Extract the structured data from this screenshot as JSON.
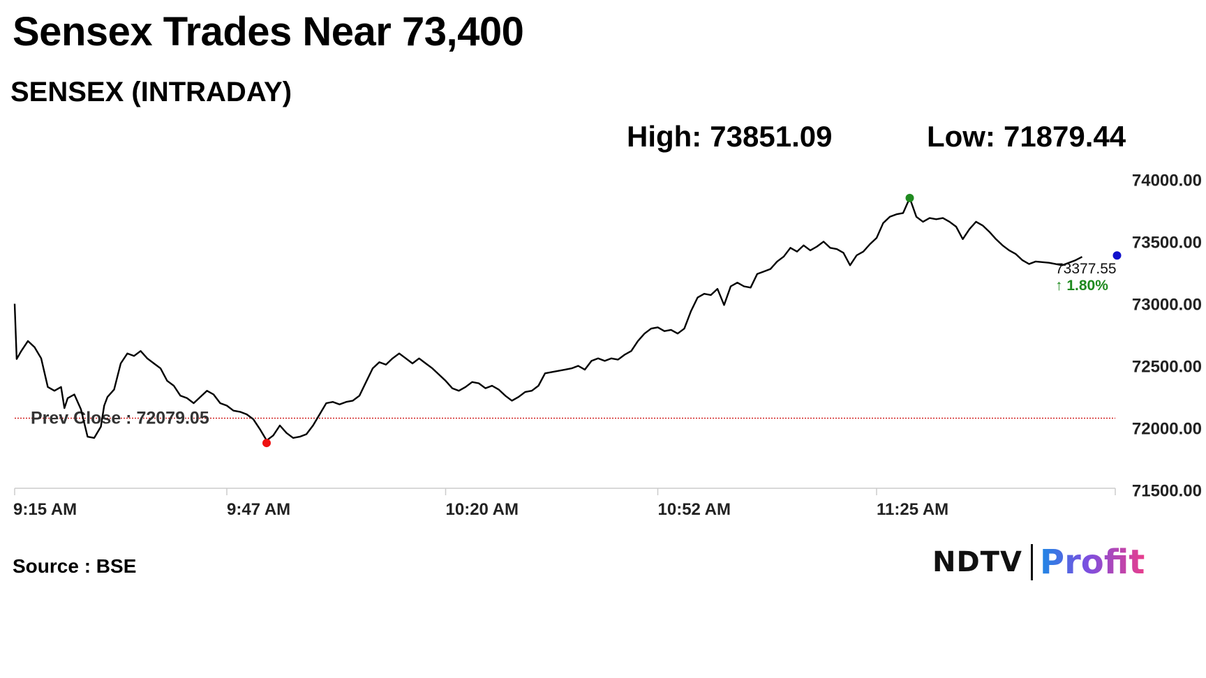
{
  "header": {
    "headline": "Sensex Trades Near 73,400",
    "subtitle": "SENSEX (INTRADAY)"
  },
  "stats": {
    "high_label": "High:",
    "high_value": "73851.09",
    "low_label": "Low:",
    "low_value": "71879.44"
  },
  "footer": {
    "source": "Source : BSE",
    "logo_left": "NDTV",
    "logo_right": "Profit"
  },
  "colors": {
    "line": "#000000",
    "prev_close_line": "#cc0000",
    "high_marker": "#1f8a1f",
    "low_marker": "#ee1111",
    "last_marker": "#1010cc",
    "change_text": "#1f8a1f"
  },
  "chart_data": {
    "type": "line",
    "title": "SENSEX (INTRADAY)",
    "xlabel": "",
    "ylabel": "",
    "x_ticks": [
      "9:15 AM",
      "9:47 AM",
      "10:20 AM",
      "10:52 AM",
      "11:25 AM"
    ],
    "x_tick_minutes": [
      0,
      32,
      65,
      97,
      130
    ],
    "xlim": [
      0,
      166
    ],
    "y_ticks": [
      "74000.00",
      "73500.00",
      "73000.00",
      "72500.00",
      "72000.00",
      "71500.00"
    ],
    "ylim": [
      71470,
      74030
    ],
    "grid": false,
    "y_axis_side": "right",
    "prev_close": {
      "label": "Prev Close : 72079.05",
      "value": 72079.05
    },
    "high": {
      "minute": 135,
      "value": 73851.09
    },
    "low": {
      "minute": 38,
      "value": 71879.44
    },
    "last": {
      "minute": 161,
      "value": 73377.55,
      "value_label": "73377.55",
      "change_label": "↑ 1.80%"
    },
    "series": [
      {
        "points": [
          [
            0,
            73000
          ],
          [
            0.3,
            72555
          ],
          [
            1,
            72620
          ],
          [
            2,
            72700
          ],
          [
            3,
            72650
          ],
          [
            4,
            72560
          ],
          [
            5,
            72330
          ],
          [
            6,
            72300
          ],
          [
            7,
            72330
          ],
          [
            7.5,
            72160
          ],
          [
            8,
            72240
          ],
          [
            9,
            72270
          ],
          [
            10,
            72150
          ],
          [
            11,
            71930
          ],
          [
            12,
            71920
          ],
          [
            13,
            72010
          ],
          [
            13.5,
            72180
          ],
          [
            14,
            72250
          ],
          [
            15,
            72310
          ],
          [
            16,
            72520
          ],
          [
            17,
            72600
          ],
          [
            18,
            72580
          ],
          [
            19,
            72620
          ],
          [
            20,
            72560
          ],
          [
            21,
            72520
          ],
          [
            22,
            72480
          ],
          [
            23,
            72380
          ],
          [
            24,
            72340
          ],
          [
            25,
            72260
          ],
          [
            26,
            72240
          ],
          [
            27,
            72200
          ],
          [
            28,
            72250
          ],
          [
            29,
            72300
          ],
          [
            30,
            72270
          ],
          [
            31,
            72200
          ],
          [
            32,
            72180
          ],
          [
            33,
            72140
          ],
          [
            34,
            72130
          ],
          [
            35,
            72110
          ],
          [
            36,
            72070
          ],
          [
            37,
            71990
          ],
          [
            38,
            71900
          ],
          [
            39,
            71940
          ],
          [
            40,
            72020
          ],
          [
            41,
            71960
          ],
          [
            42,
            71920
          ],
          [
            43,
            71930
          ],
          [
            44,
            71950
          ],
          [
            45,
            72020
          ],
          [
            46,
            72110
          ],
          [
            47,
            72200
          ],
          [
            48,
            72210
          ],
          [
            49,
            72190
          ],
          [
            50,
            72210
          ],
          [
            51,
            72220
          ],
          [
            52,
            72260
          ],
          [
            53,
            72370
          ],
          [
            54,
            72480
          ],
          [
            55,
            72530
          ],
          [
            56,
            72510
          ],
          [
            57,
            72560
          ],
          [
            58,
            72600
          ],
          [
            59,
            72560
          ],
          [
            60,
            72520
          ],
          [
            61,
            72560
          ],
          [
            62,
            72520
          ],
          [
            63,
            72480
          ],
          [
            64,
            72430
          ],
          [
            65,
            72380
          ],
          [
            66,
            72320
          ],
          [
            67,
            72300
          ],
          [
            68,
            72330
          ],
          [
            69,
            72370
          ],
          [
            70,
            72360
          ],
          [
            71,
            72320
          ],
          [
            72,
            72340
          ],
          [
            73,
            72310
          ],
          [
            74,
            72260
          ],
          [
            75,
            72220
          ],
          [
            76,
            72250
          ],
          [
            77,
            72290
          ],
          [
            78,
            72300
          ],
          [
            79,
            72340
          ],
          [
            80,
            72440
          ],
          [
            81,
            72450
          ],
          [
            82,
            72460
          ],
          [
            83,
            72470
          ],
          [
            84,
            72480
          ],
          [
            85,
            72500
          ],
          [
            86,
            72470
          ],
          [
            87,
            72540
          ],
          [
            88,
            72560
          ],
          [
            89,
            72540
          ],
          [
            90,
            72560
          ],
          [
            91,
            72550
          ],
          [
            92,
            72590
          ],
          [
            93,
            72620
          ],
          [
            94,
            72700
          ],
          [
            95,
            72760
          ],
          [
            96,
            72800
          ],
          [
            97,
            72810
          ],
          [
            98,
            72780
          ],
          [
            99,
            72790
          ],
          [
            100,
            72760
          ],
          [
            101,
            72800
          ],
          [
            102,
            72940
          ],
          [
            103,
            73050
          ],
          [
            104,
            73080
          ],
          [
            105,
            73070
          ],
          [
            106,
            73120
          ],
          [
            107,
            72990
          ],
          [
            108,
            73140
          ],
          [
            109,
            73170
          ],
          [
            110,
            73140
          ],
          [
            111,
            73130
          ],
          [
            112,
            73240
          ],
          [
            113,
            73260
          ],
          [
            114,
            73280
          ],
          [
            115,
            73340
          ],
          [
            116,
            73380
          ],
          [
            117,
            73450
          ],
          [
            118,
            73420
          ],
          [
            119,
            73470
          ],
          [
            120,
            73430
          ],
          [
            121,
            73460
          ],
          [
            122,
            73500
          ],
          [
            123,
            73450
          ],
          [
            124,
            73440
          ],
          [
            125,
            73410
          ],
          [
            126,
            73310
          ],
          [
            127,
            73390
          ],
          [
            128,
            73420
          ],
          [
            129,
            73480
          ],
          [
            130,
            73530
          ],
          [
            131,
            73650
          ],
          [
            132,
            73700
          ],
          [
            133,
            73720
          ],
          [
            134,
            73730
          ],
          [
            135,
            73851.09
          ],
          [
            136,
            73700
          ],
          [
            137,
            73660
          ],
          [
            138,
            73690
          ],
          [
            139,
            73680
          ],
          [
            140,
            73690
          ],
          [
            141,
            73660
          ],
          [
            142,
            73620
          ],
          [
            143,
            73520
          ],
          [
            144,
            73600
          ],
          [
            145,
            73660
          ],
          [
            146,
            73630
          ],
          [
            147,
            73580
          ],
          [
            148,
            73520
          ],
          [
            149,
            73470
          ],
          [
            150,
            73430
          ],
          [
            151,
            73400
          ],
          [
            152,
            73350
          ],
          [
            153,
            73320
          ],
          [
            154,
            73340
          ],
          [
            156,
            73330
          ],
          [
            158,
            73310
          ],
          [
            160,
            73350
          ],
          [
            161,
            73377.55
          ]
        ]
      }
    ]
  }
}
